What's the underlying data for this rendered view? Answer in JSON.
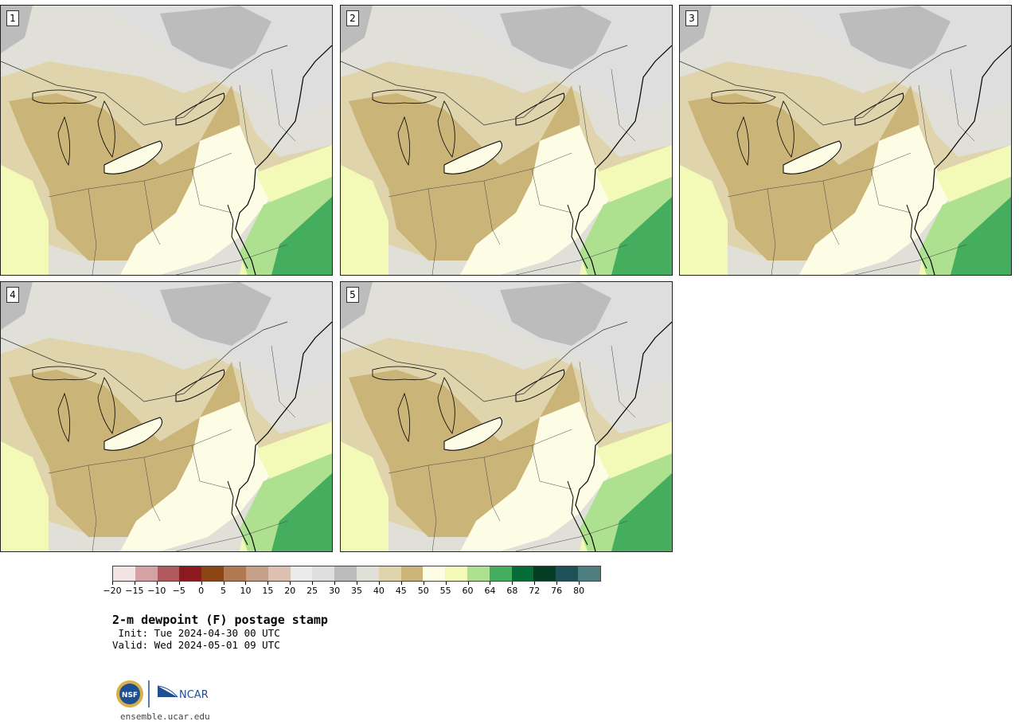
{
  "panels": [
    {
      "label": "1"
    },
    {
      "label": "2"
    },
    {
      "label": "3"
    },
    {
      "label": "4"
    },
    {
      "label": "5"
    }
  ],
  "colorbar": {
    "colors": [
      "#f2e4e4",
      "#d4a1a4",
      "#b05a60",
      "#8b1a1f",
      "#8b4513",
      "#b07850",
      "#c59f87",
      "#dcc1b3",
      "#eaeaea",
      "#dedede",
      "#bcbcbc",
      "#e0e0d8",
      "#e0d4ac",
      "#cbb478",
      "#fdfde6",
      "#f3f9b7",
      "#ade08f",
      "#44ae5e",
      "#056c38",
      "#033d23",
      "#1c5257",
      "#4e7d80"
    ],
    "tick_labels": [
      "−20",
      "−15",
      "−10",
      "−5",
      "0",
      "5",
      "10",
      "15",
      "20",
      "25",
      "30",
      "35",
      "40",
      "45",
      "50",
      "55",
      "60",
      "64",
      "68",
      "72",
      "76",
      "80"
    ]
  },
  "title": "2-m dewpoint (F) postage stamp",
  "init_line": " Init: Tue 2024-04-30 00 UTC",
  "valid_line": "Valid: Wed 2024-05-01 09 UTC",
  "logos": {
    "nsf_text": "NSF",
    "ncar_text": "NCAR"
  },
  "site": "ensemble.ucar.edu"
}
